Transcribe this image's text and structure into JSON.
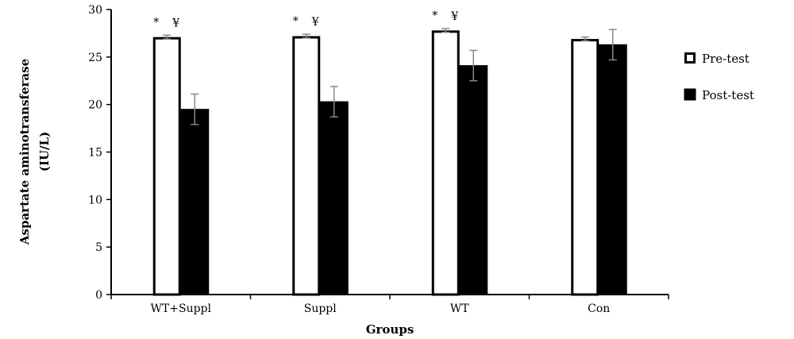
{
  "chart_data": {
    "type": "bar",
    "categories": [
      "WT+Suppl",
      "Suppl",
      "WT",
      "Con"
    ],
    "series": [
      {
        "name": "Pre-test",
        "values": [
          27.1,
          27.2,
          27.8,
          26.9
        ],
        "errors": [
          0.2,
          0.2,
          0.2,
          0.2
        ],
        "fill": "#ffffff",
        "stroke": "#000000"
      },
      {
        "name": "Post-test",
        "values": [
          19.5,
          20.3,
          24.1,
          26.3
        ],
        "errors": [
          1.6,
          1.6,
          1.6,
          1.6
        ],
        "fill": "#000000",
        "stroke": "#000000"
      }
    ],
    "annotations": [
      {
        "category": "WT+Suppl",
        "marks": [
          "*",
          "¥"
        ]
      },
      {
        "category": "Suppl",
        "marks": [
          "*",
          "¥"
        ]
      },
      {
        "category": "WT",
        "marks": [
          "*",
          "¥"
        ]
      }
    ],
    "title": "",
    "xlabel": "Groups",
    "ylabel": "Aspartate aminotransferase",
    "ylabel_unit": "(IU/L)",
    "ylim": [
      0,
      30
    ],
    "yticks": [
      0,
      5,
      10,
      15,
      20,
      25,
      30
    ],
    "grid": false,
    "legend_position": "right"
  }
}
